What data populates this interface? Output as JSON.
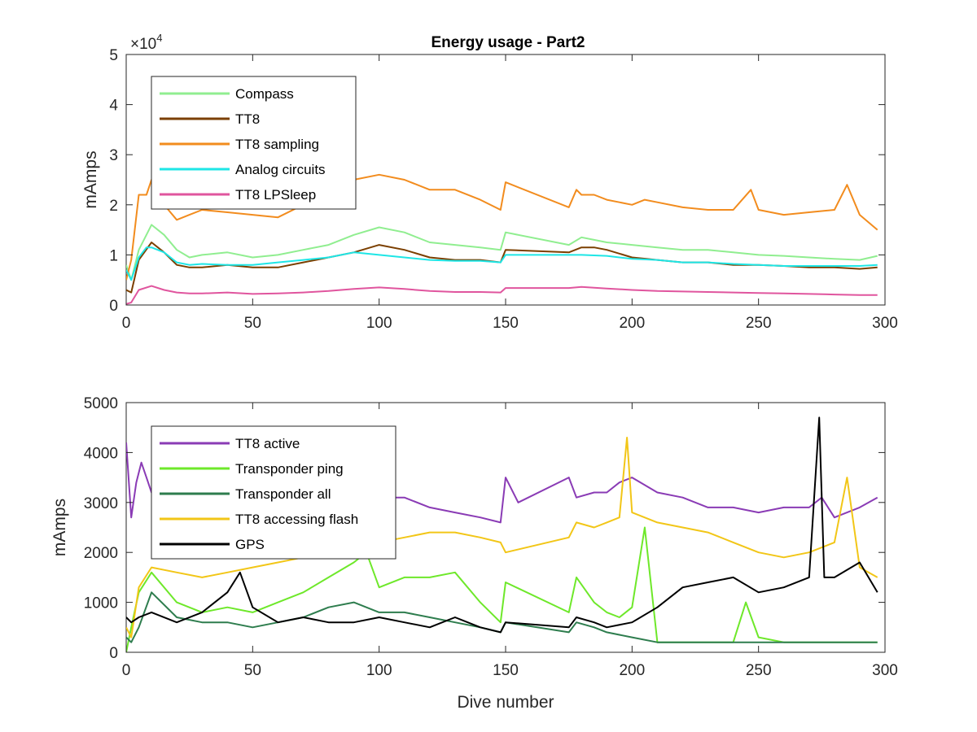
{
  "figure": {
    "title": "Energy usage - Part2",
    "exponent_base": "×10",
    "exponent_power": "4"
  },
  "chart_data": [
    {
      "type": "line",
      "title": "Energy usage - Part2",
      "xlabel": "",
      "ylabel": "mAmps",
      "xlim": [
        0,
        300
      ],
      "ylim": [
        0,
        50000
      ],
      "xticks": [
        0,
        50,
        100,
        150,
        200,
        250,
        300
      ],
      "yticks": [
        0,
        10000,
        20000,
        30000,
        40000,
        50000
      ],
      "ytick_labels": [
        "0",
        "1",
        "2",
        "3",
        "4",
        "5"
      ],
      "y_exponent": "×10^4",
      "legend_position": "top-left",
      "grid": false,
      "series": [
        {
          "name": "Compass",
          "color": "#90ee90",
          "x": [
            0,
            2,
            5,
            10,
            15,
            20,
            25,
            30,
            40,
            50,
            60,
            70,
            80,
            90,
            100,
            110,
            120,
            130,
            140,
            148,
            150,
            175,
            180,
            185,
            190,
            200,
            210,
            220,
            230,
            240,
            250,
            260,
            270,
            280,
            290,
            297
          ],
          "y": [
            8000,
            5000,
            11000,
            16000,
            14000,
            11000,
            9500,
            10000,
            10500,
            9500,
            10000,
            11000,
            12000,
            14000,
            15500,
            14500,
            12500,
            12000,
            11500,
            11000,
            14500,
            12000,
            13500,
            13000,
            12500,
            12000,
            11500,
            11000,
            11000,
            10500,
            10000,
            9800,
            9500,
            9200,
            9000,
            9800
          ]
        },
        {
          "name": "TT8",
          "color": "#7b3f00",
          "x": [
            0,
            2,
            5,
            10,
            15,
            20,
            25,
            30,
            40,
            50,
            60,
            70,
            80,
            90,
            100,
            110,
            120,
            130,
            140,
            148,
            150,
            175,
            180,
            185,
            190,
            200,
            210,
            220,
            230,
            240,
            250,
            260,
            270,
            280,
            290,
            297
          ],
          "y": [
            3000,
            2500,
            9000,
            12500,
            10500,
            8000,
            7500,
            7500,
            8000,
            7500,
            7500,
            8500,
            9500,
            10500,
            12000,
            11000,
            9500,
            9000,
            9000,
            8500,
            11000,
            10500,
            11500,
            11500,
            11000,
            9500,
            9000,
            8500,
            8500,
            8000,
            8000,
            7800,
            7500,
            7500,
            7200,
            7500
          ]
        },
        {
          "name": "TT8 sampling",
          "color": "#f28c1e",
          "x": [
            0,
            2,
            5,
            8,
            10,
            15,
            20,
            25,
            30,
            40,
            50,
            60,
            70,
            80,
            90,
            100,
            110,
            120,
            130,
            140,
            148,
            150,
            175,
            178,
            180,
            185,
            190,
            195,
            200,
            205,
            210,
            220,
            230,
            240,
            247,
            250,
            260,
            270,
            280,
            285,
            290,
            297
          ],
          "y": [
            5000,
            9000,
            22000,
            22000,
            25000,
            20000,
            17000,
            18000,
            19000,
            18500,
            18000,
            17500,
            20000,
            21000,
            25000,
            26000,
            25000,
            23000,
            23000,
            21000,
            19000,
            24500,
            19500,
            23000,
            22000,
            22000,
            21000,
            20500,
            20000,
            21000,
            20500,
            19500,
            19000,
            19000,
            23000,
            19000,
            18000,
            18500,
            19000,
            24000,
            18000,
            15000
          ]
        },
        {
          "name": "Analog circuits",
          "color": "#1ee6e6",
          "x": [
            0,
            2,
            5,
            8,
            10,
            15,
            20,
            25,
            30,
            40,
            50,
            60,
            70,
            80,
            90,
            100,
            110,
            120,
            130,
            140,
            148,
            150,
            175,
            180,
            190,
            200,
            210,
            220,
            230,
            240,
            250,
            260,
            270,
            280,
            290,
            297
          ],
          "y": [
            7000,
            5000,
            9500,
            11500,
            11500,
            10500,
            8500,
            8000,
            8200,
            8000,
            8000,
            8500,
            9000,
            9500,
            10500,
            10000,
            9500,
            9000,
            8800,
            8800,
            8500,
            10000,
            10000,
            10000,
            9800,
            9200,
            9000,
            8500,
            8500,
            8200,
            8000,
            7800,
            7800,
            7800,
            7800,
            8000
          ]
        },
        {
          "name": "TT8 LPSleep",
          "color": "#e0559e",
          "x": [
            0,
            2,
            5,
            10,
            15,
            20,
            25,
            30,
            40,
            50,
            60,
            70,
            80,
            90,
            100,
            110,
            120,
            130,
            140,
            148,
            150,
            175,
            180,
            190,
            200,
            210,
            220,
            230,
            240,
            250,
            260,
            270,
            280,
            290,
            297
          ],
          "y": [
            200,
            500,
            3000,
            3800,
            3000,
            2500,
            2300,
            2300,
            2500,
            2200,
            2300,
            2500,
            2800,
            3200,
            3500,
            3200,
            2800,
            2600,
            2600,
            2500,
            3400,
            3400,
            3600,
            3300,
            3000,
            2800,
            2700,
            2600,
            2500,
            2400,
            2300,
            2200,
            2100,
            2000,
            2000
          ]
        }
      ]
    },
    {
      "type": "line",
      "title": "",
      "xlabel": "Dive number",
      "ylabel": "mAmps",
      "xlim": [
        0,
        300
      ],
      "ylim": [
        0,
        5000
      ],
      "xticks": [
        0,
        50,
        100,
        150,
        200,
        250,
        300
      ],
      "yticks": [
        0,
        1000,
        2000,
        3000,
        4000,
        5000
      ],
      "ytick_labels": [
        "0",
        "1000",
        "2000",
        "3000",
        "4000",
        "5000"
      ],
      "legend_position": "top-left",
      "grid": false,
      "series": [
        {
          "name": "TT8 active",
          "color": "#8a3bb5",
          "x": [
            0,
            2,
            4,
            6,
            8,
            10,
            20,
            30,
            40,
            50,
            60,
            70,
            80,
            90,
            100,
            110,
            120,
            130,
            140,
            148,
            150,
            155,
            175,
            178,
            185,
            190,
            195,
            200,
            210,
            220,
            230,
            240,
            250,
            260,
            270,
            275,
            280,
            290,
            297
          ],
          "y": [
            4200,
            2700,
            3400,
            3800,
            3500,
            3200,
            3500,
            3300,
            3300,
            3200,
            3100,
            3000,
            3200,
            3100,
            3100,
            3100,
            2900,
            2800,
            2700,
            2600,
            3500,
            3000,
            3500,
            3100,
            3200,
            3200,
            3400,
            3500,
            3200,
            3100,
            2900,
            2900,
            2800,
            2900,
            2900,
            3100,
            2700,
            2900,
            3100
          ]
        },
        {
          "name": "Transponder ping",
          "color": "#6ee82a",
          "x": [
            0,
            2,
            5,
            10,
            20,
            30,
            40,
            50,
            60,
            70,
            80,
            90,
            95,
            100,
            110,
            120,
            130,
            140,
            148,
            150,
            175,
            178,
            185,
            190,
            195,
            200,
            205,
            210,
            220,
            230,
            240,
            245,
            250,
            260,
            270,
            280,
            290,
            297
          ],
          "y": [
            0,
            500,
            1200,
            1600,
            1000,
            800,
            900,
            800,
            1000,
            1200,
            1500,
            1800,
            2000,
            1300,
            1500,
            1500,
            1600,
            1000,
            600,
            1400,
            800,
            1500,
            1000,
            800,
            700,
            900,
            2500,
            200,
            200,
            200,
            200,
            1000,
            300,
            200,
            200,
            200,
            200,
            200
          ]
        },
        {
          "name": "Transponder all",
          "color": "#2e7d4e",
          "x": [
            0,
            2,
            5,
            10,
            20,
            30,
            40,
            50,
            60,
            70,
            80,
            90,
            100,
            110,
            120,
            130,
            140,
            148,
            150,
            175,
            178,
            185,
            190,
            200,
            210,
            220,
            230,
            240,
            250,
            260,
            270,
            280,
            290,
            297
          ],
          "y": [
            300,
            200,
            500,
            1200,
            700,
            600,
            600,
            500,
            600,
            700,
            900,
            1000,
            800,
            800,
            700,
            600,
            500,
            400,
            600,
            400,
            600,
            500,
            400,
            300,
            200,
            200,
            200,
            200,
            200,
            200,
            200,
            200,
            200,
            200
          ]
        },
        {
          "name": "TT8 accessing flash",
          "color": "#f2c617",
          "x": [
            0,
            2,
            5,
            10,
            20,
            30,
            40,
            50,
            60,
            70,
            80,
            90,
            100,
            110,
            120,
            130,
            140,
            148,
            150,
            175,
            178,
            185,
            190,
            195,
            198,
            200,
            210,
            220,
            230,
            240,
            250,
            260,
            270,
            280,
            285,
            290,
            297
          ],
          "y": [
            500,
            300,
            1300,
            1700,
            1600,
            1500,
            1600,
            1700,
            1800,
            1900,
            2000,
            2100,
            2200,
            2300,
            2400,
            2400,
            2300,
            2200,
            2000,
            2300,
            2600,
            2500,
            2600,
            2700,
            4300,
            2800,
            2600,
            2500,
            2400,
            2200,
            2000,
            1900,
            2000,
            2200,
            3500,
            1700,
            1500
          ]
        },
        {
          "name": "GPS",
          "color": "#000000",
          "x": [
            0,
            2,
            5,
            10,
            20,
            30,
            40,
            45,
            50,
            60,
            70,
            80,
            90,
            100,
            110,
            120,
            130,
            140,
            148,
            150,
            175,
            178,
            185,
            190,
            200,
            210,
            220,
            230,
            240,
            250,
            260,
            270,
            274,
            276,
            280,
            290,
            297
          ],
          "y": [
            700,
            600,
            700,
            800,
            600,
            800,
            1200,
            1600,
            900,
            600,
            700,
            600,
            600,
            700,
            600,
            500,
            700,
            500,
            400,
            600,
            500,
            700,
            600,
            500,
            600,
            900,
            1300,
            1400,
            1500,
            1200,
            1300,
            1500,
            4700,
            1500,
            1500,
            1800,
            1200
          ]
        }
      ]
    }
  ]
}
